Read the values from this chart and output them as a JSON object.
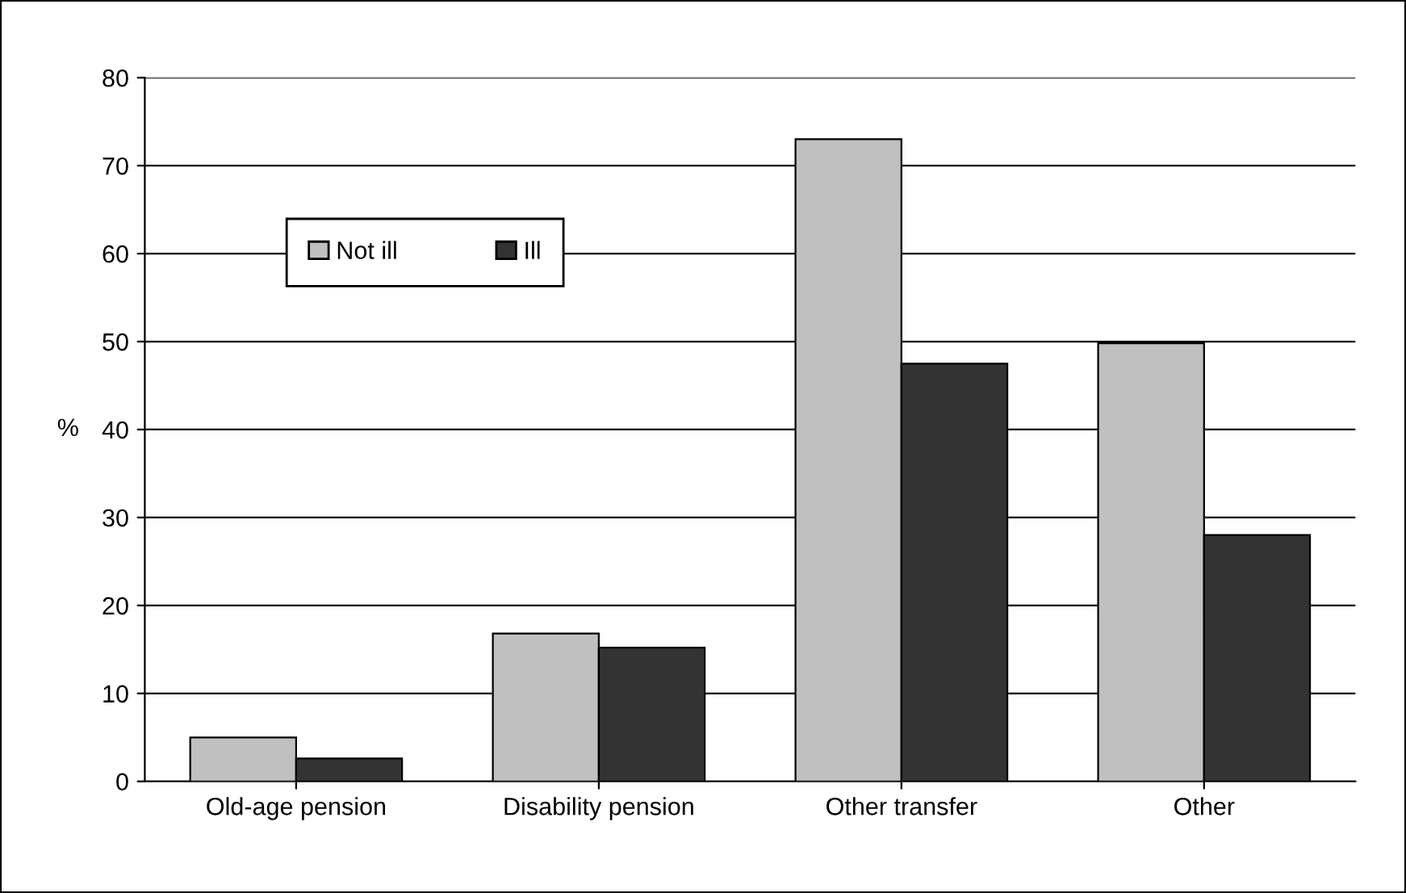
{
  "chart_data": {
    "type": "bar",
    "ylabel": "%",
    "categories": [
      "Old-age pension",
      "Disability pension",
      "Other transfer",
      "Other"
    ],
    "series": [
      {
        "name": "Not ill",
        "color": "#c0c0c0",
        "values": [
          5,
          16.8,
          73,
          49.8
        ]
      },
      {
        "name": "Ill",
        "color": "#333333",
        "values": [
          2.6,
          15.2,
          47.5,
          28
        ]
      }
    ],
    "ylim": [
      0,
      80
    ],
    "yticks": [
      0,
      10,
      20,
      30,
      40,
      50,
      60,
      70,
      80
    ],
    "grid": "y",
    "legend": "top left"
  }
}
